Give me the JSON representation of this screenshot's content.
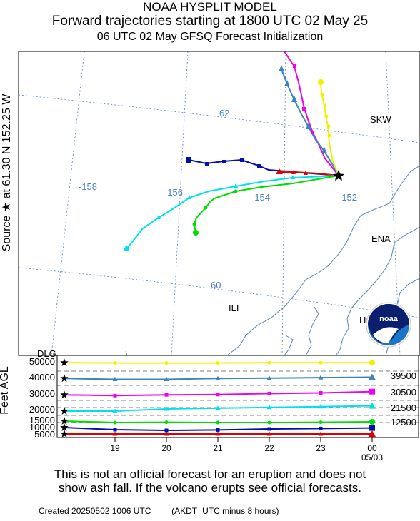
{
  "header": {
    "line1": "NOAA HYSPLIT MODEL",
    "line2": "Forward trajectories starting at 1800 UTC 02 May 25",
    "line3": "06 UTC 02 May    GFSQ  Forecast Initialization"
  },
  "source_label": "Source ★  at   61.30 N  152.25 W",
  "height_axis_label": "Feet AGL",
  "disclaimer": {
    "line1": "This is not an official forecast for an eruption and does not",
    "line2": "show ash fall. If the volcano erupts see official forecasts."
  },
  "footer": {
    "created": "Created 20250502 1006 UTC",
    "note": "(AKDT=UTC minus 8 hours)"
  },
  "logo_text": "noaa",
  "colors": {
    "grid": "#4a7fc8",
    "coast": "#5b87b7",
    "red": "#e00000",
    "blue": "#0010b0",
    "green": "#00dd00",
    "cyan": "#00e0f0",
    "magenta": "#f000f0",
    "steelblue": "#3a84c0",
    "yellow": "#f0f000"
  },
  "map": {
    "lat_labels": [
      "62",
      "60"
    ],
    "lon_labels": [
      "-158",
      "-156",
      "-154",
      "-152"
    ],
    "stations": [
      "SKW",
      "ENA",
      "ILI",
      "HOM",
      "DLG"
    ]
  },
  "chart_data": {
    "type": "line",
    "title": "Forward trajectories starting at 1800 UTC 02 May 25",
    "ylabel": "Feet AGL",
    "x_tick_labels": [
      "19",
      "20",
      "21",
      "22",
      "23",
      "00",
      "05/03"
    ],
    "y_tick_labels": [
      "50000",
      "40000",
      "30000",
      "20000",
      "15000",
      "10000",
      "5000"
    ],
    "right_labels": [
      "39500",
      "30500",
      "21500",
      "12500"
    ],
    "x": [
      "18",
      "19",
      "20",
      "21",
      "22",
      "23",
      "00"
    ],
    "series": [
      {
        "color": "red",
        "values": [
          500,
          500,
          500,
          500,
          500,
          600,
          1000
        ]
      },
      {
        "color": "blue",
        "values": [
          9500,
          8000,
          7500,
          7800,
          8500,
          8800,
          9200
        ]
      },
      {
        "color": "green",
        "values": [
          14000,
          13000,
          13200,
          13000,
          13000,
          13200,
          13500
        ]
      },
      {
        "color": "cyan",
        "values": [
          19000,
          19000,
          20000,
          20500,
          21000,
          21500,
          22000
        ]
      },
      {
        "color": "magenta",
        "values": [
          29000,
          28500,
          29000,
          29200,
          29800,
          30200,
          31000
        ]
      },
      {
        "color": "steelblue",
        "values": [
          39000,
          38500,
          38500,
          39000,
          39200,
          39500,
          39800
        ]
      },
      {
        "color": "yellow",
        "values": [
          49000,
          48800,
          48800,
          48800,
          49000,
          49000,
          49000
        ]
      }
    ]
  }
}
